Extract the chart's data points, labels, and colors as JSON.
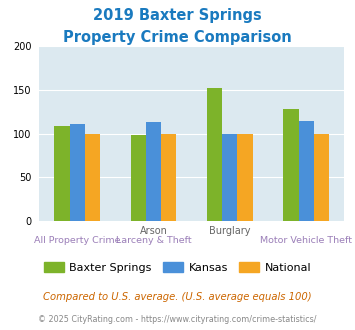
{
  "title_line1": "2019 Baxter Springs",
  "title_line2": "Property Crime Comparison",
  "title_color": "#1a7abf",
  "baxter_springs": [
    109,
    98,
    152,
    128
  ],
  "kansas": [
    111,
    113,
    100,
    115
  ],
  "national": [
    100,
    100,
    100,
    100
  ],
  "color_baxter": "#7db32a",
  "color_kansas": "#4a90d9",
  "color_national": "#f5a623",
  "ylim": [
    0,
    200
  ],
  "yticks": [
    0,
    50,
    100,
    150,
    200
  ],
  "plot_bg": "#dce9f0",
  "legend_labels": [
    "Baxter Springs",
    "Kansas",
    "National"
  ],
  "top_labels": [
    "",
    "Arson",
    "Burglary",
    ""
  ],
  "bot_labels": [
    "All Property Crime",
    "Larceny & Theft",
    "",
    "Motor Vehicle Theft"
  ],
  "top_label_color": "#666666",
  "bot_label_color": "#9b7fb8",
  "footnote1": "Compared to U.S. average. (U.S. average equals 100)",
  "footnote2": "© 2025 CityRating.com - https://www.cityrating.com/crime-statistics/",
  "footnote1_color": "#cc6600",
  "footnote2_color": "#888888"
}
